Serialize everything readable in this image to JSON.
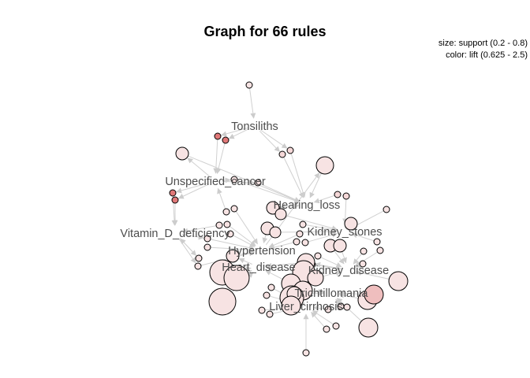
{
  "chart_data": {
    "type": "graph",
    "title": "Graph for 66 rules",
    "legend": {
      "size_text": "size: support (0.2 - 0.8)",
      "color_text": "color: lift (0.625 - 2.5)",
      "placement": "top-right",
      "support_range": [
        0.2,
        0.8
      ],
      "lift_range": [
        0.625,
        2.5
      ]
    },
    "rule_count": 66,
    "items": [
      "Tonsiliths",
      "Unspecified_cancer",
      "Hearing_loss",
      "Vitamin_D_deficiency",
      "Kidney_stones",
      "Hypertension",
      "Heart_disease",
      "Kidney_disease",
      "Trichtillomania",
      "Liver_cirrhosis"
    ],
    "colors": {
      "edge": "#d0d0d0",
      "low_lift": "#f7e3e3",
      "high_lift": "#e07878",
      "node_stroke": "#000000",
      "label": "#4d4d4d"
    }
  }
}
